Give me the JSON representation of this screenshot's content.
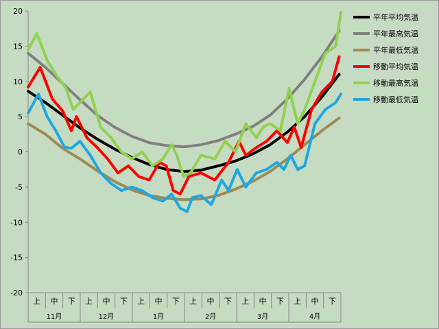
{
  "chart_data": {
    "type": "line",
    "title": "",
    "xlabel": "",
    "ylabel": "",
    "ylim": [
      -20,
      20
    ],
    "yticks": [
      20,
      15,
      10,
      5,
      0,
      -5,
      -10,
      -15,
      -20
    ],
    "grid": false,
    "legend_position": "right",
    "x_decade_labels": [
      "上",
      "中",
      "下"
    ],
    "months": [
      "11月",
      "12月",
      "1月",
      "2月",
      "3月",
      "4月"
    ],
    "colors": {
      "background": "#c6dcc2",
      "black": "#000000",
      "gray": "#808080",
      "brown": "#9c8a55",
      "red": "#ff0000",
      "green": "#92d050",
      "blue": "#1ea7e1"
    },
    "series": [
      {
        "name": "平年平均気温",
        "color": "#000000",
        "x": [
          0,
          10,
          20,
          30,
          40,
          50,
          60,
          70,
          80,
          90,
          100,
          110,
          120,
          130,
          140,
          150,
          160,
          170,
          180
        ],
        "values": [
          8.6,
          7.0,
          5.2,
          3.4,
          1.8,
          0.4,
          -0.8,
          -1.8,
          -2.5,
          -2.8,
          -2.6,
          -2.0,
          -1.3,
          -0.3,
          1.0,
          2.8,
          5.0,
          7.8,
          11.0
        ]
      },
      {
        "name": "平年最高気温",
        "color": "#808080",
        "x": [
          0,
          10,
          20,
          30,
          40,
          50,
          60,
          70,
          80,
          90,
          100,
          110,
          120,
          130,
          140,
          150,
          160,
          170,
          180
        ],
        "values": [
          14.0,
          12.0,
          9.7,
          7.4,
          5.2,
          3.5,
          2.2,
          1.3,
          0.9,
          0.7,
          1.0,
          1.6,
          2.5,
          3.6,
          5.2,
          7.5,
          10.3,
          13.5,
          17.2
        ]
      },
      {
        "name": "平年最低気温",
        "color": "#9c8a55",
        "x": [
          0,
          10,
          20,
          30,
          40,
          50,
          60,
          70,
          80,
          90,
          100,
          110,
          120,
          130,
          140,
          150,
          160,
          170,
          180
        ],
        "values": [
          4.0,
          2.5,
          0.5,
          -1.0,
          -2.7,
          -4.2,
          -5.4,
          -6.2,
          -6.6,
          -6.8,
          -6.7,
          -6.2,
          -5.3,
          -4.2,
          -2.8,
          -1.0,
          1.0,
          3.0,
          4.8
        ]
      },
      {
        "name": "移動平均気温",
        "color": "#ff0000",
        "x": [
          0,
          7,
          14,
          20,
          25,
          28,
          34,
          40,
          46,
          52,
          58,
          64,
          70,
          76,
          80,
          84,
          88,
          93,
          100,
          108,
          116,
          122,
          126,
          132,
          138,
          144,
          150,
          154,
          158,
          164,
          170,
          176,
          180
        ],
        "values": [
          9.2,
          12.0,
          7.5,
          5.8,
          3.0,
          5.0,
          2.0,
          0.6,
          -1.0,
          -3.0,
          -2.0,
          -3.5,
          -4.0,
          -1.5,
          -2.0,
          -5.5,
          -6.0,
          -3.5,
          -3.0,
          -4.0,
          -1.5,
          1.5,
          -0.5,
          0.6,
          1.5,
          3.0,
          1.3,
          3.5,
          0.6,
          6.0,
          8.5,
          10.0,
          13.5
        ]
      },
      {
        "name": "移動最高気温",
        "color": "#92d050",
        "x": [
          0,
          5,
          11,
          16,
          22,
          26,
          30,
          36,
          42,
          48,
          54,
          60,
          66,
          72,
          78,
          83,
          86,
          90,
          94,
          100,
          108,
          114,
          120,
          126,
          132,
          136,
          140,
          146,
          151,
          156,
          160,
          166,
          172,
          178,
          181
        ],
        "values": [
          14.5,
          16.8,
          13.0,
          11.0,
          9.0,
          6.0,
          7.0,
          8.5,
          3.5,
          2.0,
          0.0,
          -1.0,
          0.0,
          -2.0,
          -1.0,
          1.0,
          -0.5,
          -3.5,
          -3.0,
          -0.5,
          -1.0,
          1.5,
          0.0,
          4.0,
          2.0,
          3.5,
          4.0,
          3.0,
          9.0,
          4.0,
          6.0,
          10.0,
          14.0,
          15.0,
          19.8
        ]
      },
      {
        "name": "移動最低気温",
        "color": "#1ea7e1",
        "x": [
          0,
          6,
          11,
          16,
          21,
          25,
          30,
          36,
          42,
          48,
          54,
          60,
          66,
          72,
          78,
          83,
          88,
          92,
          95,
          100,
          106,
          112,
          116,
          121,
          126,
          132,
          138,
          144,
          148,
          152,
          156,
          160,
          166,
          172,
          178,
          181
        ],
        "values": [
          5.5,
          8.2,
          5.0,
          3.0,
          0.7,
          0.5,
          1.5,
          -0.5,
          -3.0,
          -4.5,
          -5.5,
          -5.0,
          -5.5,
          -6.5,
          -7.0,
          -6.0,
          -8.0,
          -8.5,
          -6.5,
          -6.2,
          -7.5,
          -4.0,
          -5.5,
          -2.5,
          -5.0,
          -3.0,
          -2.5,
          -1.5,
          -2.5,
          -0.5,
          -2.5,
          -2.0,
          4.0,
          6.0,
          7.0,
          8.2
        ]
      }
    ]
  }
}
